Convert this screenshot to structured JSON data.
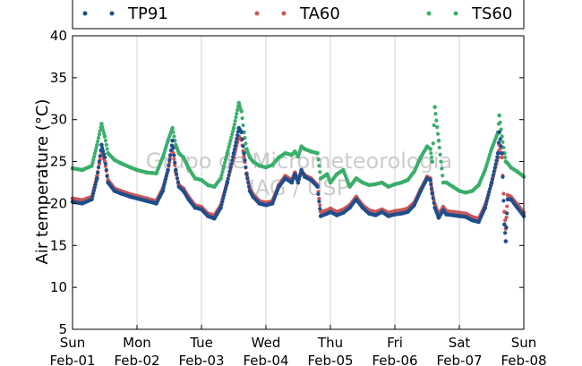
{
  "chart_data": {
    "type": "scatter",
    "ylabel": "Air temperature (°C)",
    "xlabel": "",
    "xlim": [
      0,
      7
    ],
    "ylim": [
      5,
      40
    ],
    "yticks": [
      5,
      10,
      15,
      20,
      25,
      30,
      35,
      40
    ],
    "xticks": [
      {
        "x": 0,
        "line1": "Sun",
        "line2": "Feb-01"
      },
      {
        "x": 1,
        "line1": "Mon",
        "line2": "Feb-02"
      },
      {
        "x": 2,
        "line1": "Tue",
        "line2": "Feb-03"
      },
      {
        "x": 3,
        "line1": "Wed",
        "line2": "Feb-04"
      },
      {
        "x": 4,
        "line1": "Thu",
        "line2": "Feb-05"
      },
      {
        "x": 5,
        "line1": "Fri",
        "line2": "Feb-06"
      },
      {
        "x": 6,
        "line1": "Sat",
        "line2": "Feb-07"
      },
      {
        "x": 7,
        "line1": "Sun",
        "line2": "Feb-08"
      }
    ],
    "grid": "vertical",
    "legend_position": "top",
    "watermark": [
      "Grupo de Micrometeorologia",
      "IAG / USP"
    ],
    "series": [
      {
        "name": "TP91",
        "color": "#1f4e8c",
        "x": [
          0.0,
          0.15,
          0.3,
          0.38,
          0.45,
          0.5,
          0.55,
          0.65,
          0.75,
          0.9,
          1.0,
          1.15,
          1.3,
          1.4,
          1.48,
          1.55,
          1.6,
          1.65,
          1.72,
          1.8,
          1.9,
          2.0,
          2.1,
          2.2,
          2.3,
          2.4,
          2.5,
          2.58,
          2.62,
          2.66,
          2.7,
          2.75,
          2.8,
          2.9,
          3.0,
          3.1,
          3.2,
          3.3,
          3.4,
          3.45,
          3.5,
          3.55,
          3.6,
          3.7,
          3.8,
          3.85,
          3.95,
          4.0,
          4.1,
          4.2,
          4.3,
          4.4,
          4.5,
          4.6,
          4.7,
          4.8,
          4.9,
          5.0,
          5.1,
          5.2,
          5.3,
          5.4,
          5.5,
          5.55,
          5.58,
          5.62,
          5.68,
          5.75,
          5.8,
          5.9,
          6.0,
          6.1,
          6.2,
          6.3,
          6.4,
          6.5,
          6.6,
          6.62,
          6.66,
          6.7,
          6.72,
          6.75,
          6.8,
          6.9,
          7.0
        ],
        "y": [
          20.2,
          20.0,
          20.5,
          23.0,
          27.0,
          25.5,
          22.5,
          21.5,
          21.2,
          20.8,
          20.6,
          20.3,
          20.0,
          21.5,
          24.0,
          27.5,
          24.0,
          22.0,
          21.5,
          20.5,
          19.5,
          19.3,
          18.5,
          18.2,
          19.5,
          22.5,
          26.0,
          29.0,
          28.5,
          26.0,
          23.5,
          21.5,
          20.8,
          20.0,
          19.8,
          20.0,
          22.0,
          23.0,
          22.5,
          23.5,
          22.5,
          24.0,
          23.2,
          22.8,
          22.0,
          18.5,
          18.8,
          19.0,
          18.6,
          18.9,
          19.5,
          20.5,
          19.5,
          18.8,
          18.6,
          19.0,
          18.5,
          18.7,
          18.8,
          19.0,
          19.8,
          21.5,
          23.0,
          22.8,
          21.2,
          19.5,
          18.3,
          19.2,
          18.7,
          18.6,
          18.5,
          18.4,
          18.0,
          17.8,
          19.5,
          22.5,
          26.0,
          28.5,
          26.0,
          17.5,
          15.5,
          20.5,
          20.5,
          19.5,
          18.5
        ]
      },
      {
        "name": "TA60",
        "color": "#c9575a",
        "x": [
          0.0,
          0.15,
          0.3,
          0.38,
          0.45,
          0.5,
          0.55,
          0.65,
          0.75,
          0.9,
          1.0,
          1.15,
          1.3,
          1.4,
          1.48,
          1.55,
          1.6,
          1.65,
          1.72,
          1.8,
          1.9,
          2.0,
          2.1,
          2.2,
          2.3,
          2.4,
          2.5,
          2.58,
          2.62,
          2.66,
          2.7,
          2.75,
          2.8,
          2.9,
          3.0,
          3.1,
          3.2,
          3.3,
          3.4,
          3.45,
          3.5,
          3.55,
          3.6,
          3.7,
          3.8,
          3.85,
          3.95,
          4.0,
          4.1,
          4.2,
          4.3,
          4.4,
          4.5,
          4.6,
          4.7,
          4.8,
          4.9,
          5.0,
          5.1,
          5.2,
          5.3,
          5.4,
          5.5,
          5.55,
          5.58,
          5.62,
          5.68,
          5.75,
          5.8,
          5.9,
          6.0,
          6.1,
          6.2,
          6.3,
          6.4,
          6.5,
          6.6,
          6.62,
          6.66,
          6.7,
          6.72,
          6.75,
          6.8,
          6.9,
          7.0
        ],
        "y": [
          20.6,
          20.4,
          20.8,
          23.3,
          26.2,
          25.0,
          22.8,
          21.8,
          21.5,
          21.1,
          20.9,
          20.6,
          20.3,
          21.8,
          24.0,
          26.8,
          23.8,
          22.2,
          21.8,
          20.8,
          19.8,
          19.6,
          18.8,
          18.6,
          19.8,
          22.6,
          25.5,
          28.0,
          27.6,
          25.6,
          23.6,
          21.8,
          21.1,
          20.3,
          20.1,
          20.3,
          22.2,
          23.3,
          22.8,
          23.7,
          22.8,
          23.9,
          23.4,
          23.0,
          22.2,
          19.0,
          19.2,
          19.4,
          19.0,
          19.3,
          19.8,
          20.8,
          19.8,
          19.2,
          19.0,
          19.3,
          18.9,
          19.1,
          19.2,
          19.4,
          20.1,
          21.7,
          23.2,
          23.0,
          21.4,
          19.9,
          18.7,
          19.6,
          19.1,
          19.0,
          18.9,
          18.8,
          18.4,
          18.2,
          19.8,
          22.4,
          25.5,
          27.0,
          25.5,
          19.0,
          17.0,
          21.0,
          20.8,
          19.9,
          18.9
        ]
      },
      {
        "name": "TS60",
        "color": "#3aaf6b",
        "x": [
          0.0,
          0.15,
          0.3,
          0.38,
          0.45,
          0.5,
          0.55,
          0.65,
          0.75,
          0.9,
          1.0,
          1.15,
          1.3,
          1.4,
          1.48,
          1.55,
          1.6,
          1.65,
          1.72,
          1.8,
          1.9,
          2.0,
          2.1,
          2.2,
          2.3,
          2.4,
          2.5,
          2.58,
          2.62,
          2.66,
          2.7,
          2.75,
          2.8,
          2.9,
          3.0,
          3.1,
          3.2,
          3.3,
          3.4,
          3.45,
          3.5,
          3.55,
          3.6,
          3.7,
          3.8,
          3.85,
          3.95,
          4.0,
          4.1,
          4.2,
          4.3,
          4.4,
          4.5,
          4.6,
          4.7,
          4.8,
          4.9,
          5.0,
          5.1,
          5.2,
          5.3,
          5.4,
          5.5,
          5.55,
          5.58,
          5.62,
          5.68,
          5.75,
          5.8,
          5.9,
          6.0,
          6.1,
          6.2,
          6.3,
          6.4,
          6.5,
          6.6,
          6.62,
          6.66,
          6.7,
          6.72,
          6.75,
          6.8,
          6.9,
          7.0
        ],
        "y": [
          24.2,
          24.0,
          24.5,
          27.0,
          29.5,
          28.0,
          26.0,
          25.2,
          24.8,
          24.3,
          24.0,
          23.7,
          23.6,
          25.5,
          27.5,
          29.0,
          27.0,
          26.0,
          25.5,
          24.2,
          23.0,
          22.8,
          22.2,
          22.0,
          23.0,
          26.0,
          29.0,
          32.0,
          31.0,
          28.5,
          26.5,
          25.5,
          25.0,
          24.5,
          24.3,
          24.6,
          25.5,
          26.0,
          25.8,
          26.2,
          25.6,
          26.8,
          26.5,
          26.2,
          26.0,
          23.0,
          23.5,
          22.5,
          23.5,
          24.0,
          22.0,
          23.0,
          22.5,
          22.2,
          22.3,
          22.5,
          22.0,
          22.3,
          22.5,
          22.8,
          23.8,
          25.5,
          26.8,
          26.5,
          25.0,
          31.5,
          27.5,
          22.5,
          22.5,
          22.0,
          21.5,
          21.3,
          21.5,
          22.2,
          24.0,
          26.5,
          28.5,
          30.5,
          28.0,
          26.0,
          25.0,
          24.8,
          24.3,
          23.8,
          23.2
        ]
      }
    ]
  }
}
